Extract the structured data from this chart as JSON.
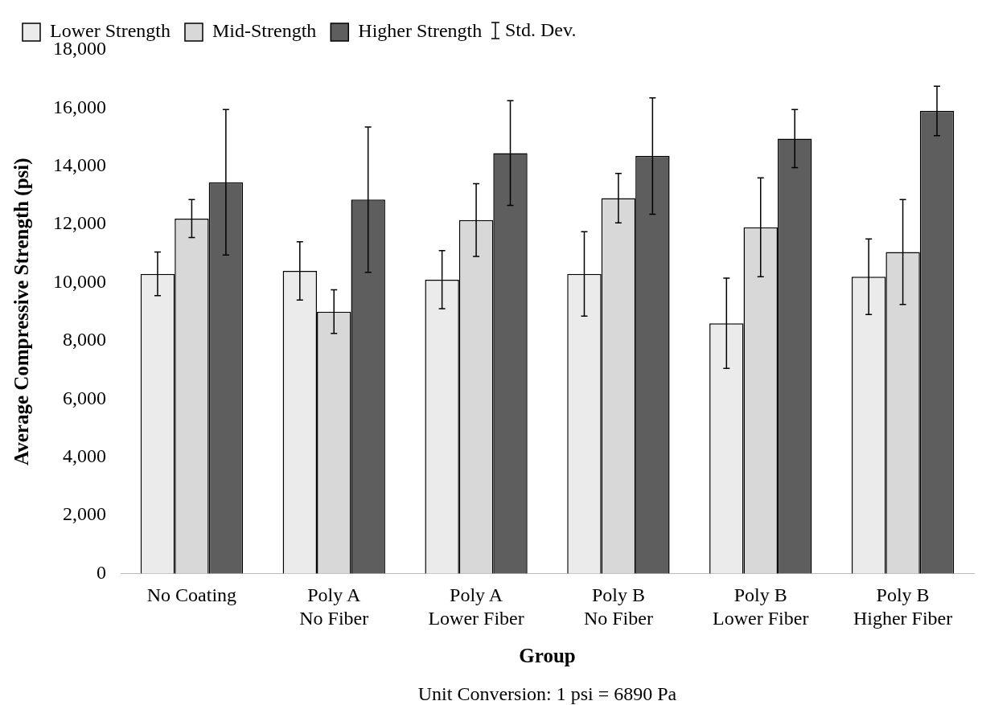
{
  "chart_data": {
    "type": "bar",
    "categories": [
      "No Coating",
      "Poly A\nNo Fiber",
      "Poly A\nLower Fiber",
      "Poly B\nNo Fiber",
      "Poly B\nLower Fiber",
      "Poly B\nHigher Fiber"
    ],
    "series": [
      {
        "name": "Lower Strength",
        "color": "#ebebeb",
        "values": [
          10300,
          10400,
          10100,
          10300,
          8600,
          10200
        ],
        "errors": [
          750,
          1000,
          1000,
          1450,
          1550,
          1300
        ]
      },
      {
        "name": "Mid-Strength",
        "color": "#d8d8d8",
        "values": [
          12200,
          9000,
          12150,
          12900,
          11900,
          11050
        ],
        "errors": [
          650,
          750,
          1250,
          850,
          1700,
          1800
        ]
      },
      {
        "name": "Higher Strength",
        "color": "#5e5e5e",
        "values": [
          13450,
          12850,
          14450,
          14350,
          14950,
          15900
        ],
        "errors": [
          2500,
          2500,
          1800,
          2000,
          1000,
          850
        ]
      }
    ],
    "xlabel": "Group",
    "ylabel": "Average Compressive Strength (psi)",
    "ylim": [
      0,
      18000
    ],
    "yticks": [
      0,
      {
        "value": 2000,
        "label": "2,000"
      },
      {
        "value": 4000,
        "label": "4,000"
      },
      {
        "value": 6000,
        "label": "6,000"
      },
      {
        "value": 8000,
        "label": "8,000"
      },
      {
        "value": 10000,
        "label": "10,000"
      },
      {
        "value": 12000,
        "label": "12,000"
      },
      {
        "value": 14000,
        "label": "14,000"
      },
      {
        "value": 16000,
        "label": "16,000"
      },
      {
        "value": 18000,
        "label": "18,000"
      }
    ],
    "annotations": [
      "Std. Dev.",
      "Unit Conversion: 1 psi = 6890 Pa"
    ],
    "grid": false,
    "legend": "top"
  }
}
